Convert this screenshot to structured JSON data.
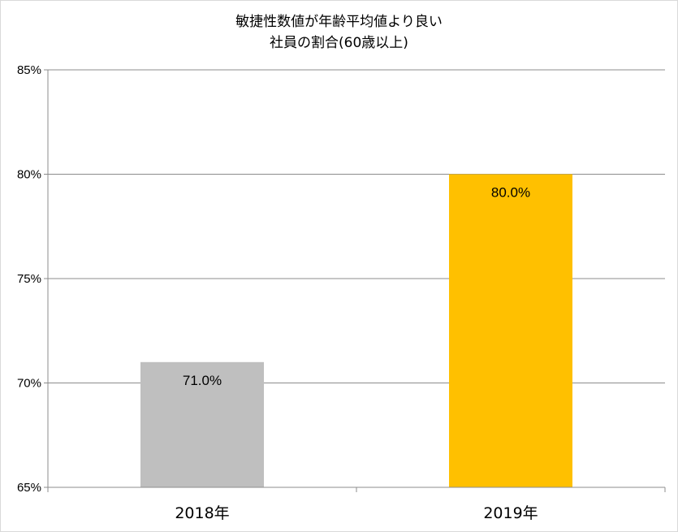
{
  "chart_data": {
    "type": "bar",
    "title_lines": [
      "敏捷性数値が年齢平均値より良い",
      "社員の割合(60歳以上)"
    ],
    "categories": [
      "2018年",
      "2019年"
    ],
    "values": [
      71.0,
      80.0
    ],
    "data_labels": [
      "71.0%",
      "80.0%"
    ],
    "bar_colors": [
      "#bfbfbf",
      "#ffc000"
    ],
    "ylim": [
      65,
      85
    ],
    "yticks": [
      65,
      70,
      75,
      80,
      85
    ],
    "ytick_labels": [
      "65%",
      "70%",
      "75%",
      "80%",
      "85%"
    ],
    "grid": true,
    "legend": "none"
  }
}
